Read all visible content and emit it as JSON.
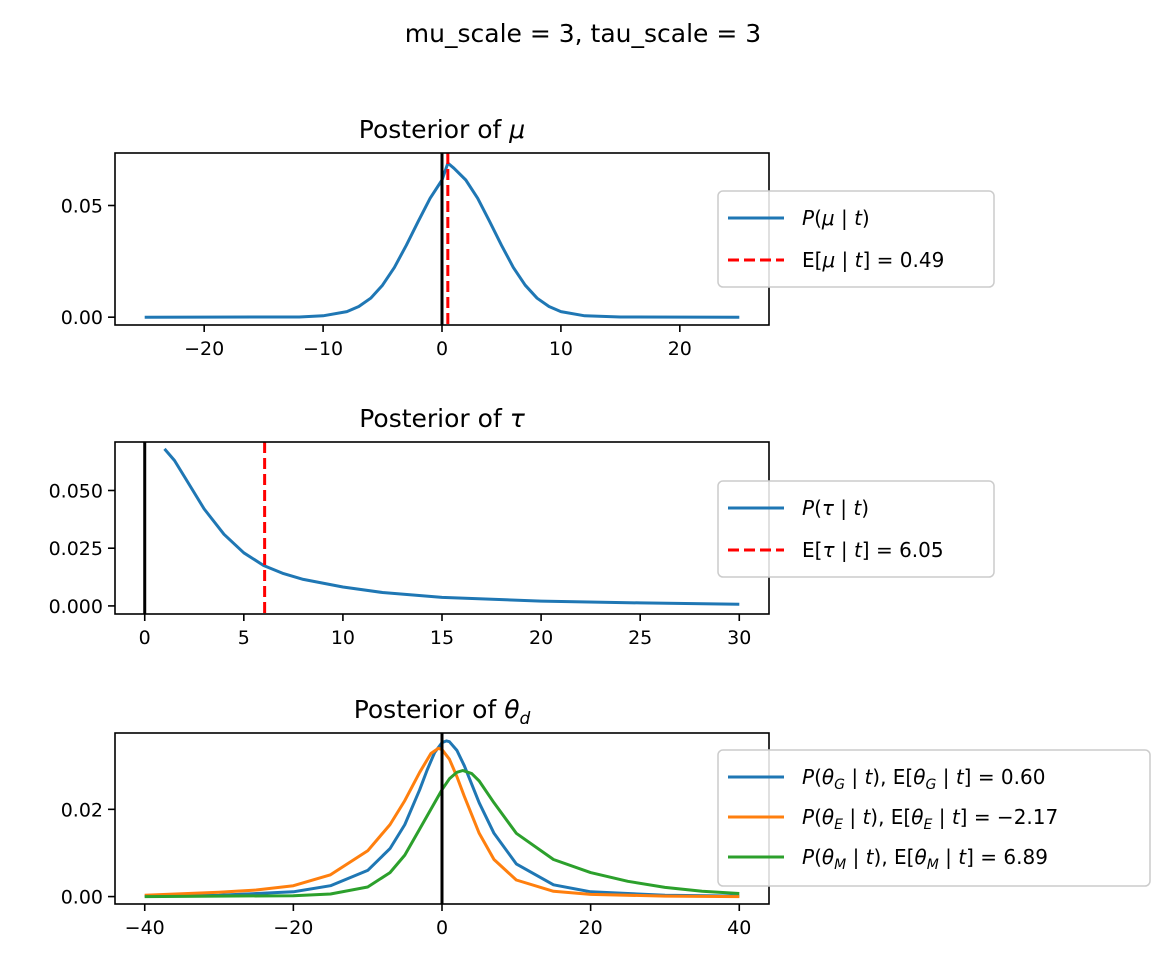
{
  "figure": {
    "suptitle": "mu_scale = 3, tau_scale = 3"
  },
  "chart_data": [
    {
      "type": "line",
      "title": "Posterior of μ",
      "xlim": [
        -27.5,
        27.5
      ],
      "ylim": [
        -0.0035,
        0.0735
      ],
      "xticks": [
        -20,
        -10,
        0,
        10,
        20
      ],
      "xtick_labels": [
        "−20",
        "−10",
        "0",
        "10",
        "20"
      ],
      "yticks": [
        0.0,
        0.05
      ],
      "ytick_labels": [
        "0.00",
        "0.05"
      ],
      "legend_position": "right",
      "series": [
        {
          "name": "P(μ | t)",
          "color": "#1f77b4",
          "x": [
            -25,
            -12,
            -10,
            -8,
            -7,
            -6,
            -5,
            -4,
            -3,
            -2,
            -1,
            0,
            0.5,
            1,
            2,
            3,
            4,
            5,
            6,
            7,
            8,
            9,
            10,
            12,
            15,
            25
          ],
          "y": [
            0.0,
            0.0001,
            0.0006,
            0.0025,
            0.0048,
            0.0085,
            0.0143,
            0.0223,
            0.0322,
            0.0429,
            0.0532,
            0.0614,
            0.069,
            0.0667,
            0.0614,
            0.0532,
            0.0429,
            0.0322,
            0.0223,
            0.0143,
            0.0085,
            0.0048,
            0.0025,
            0.0006,
            0.0001,
            0.0
          ]
        }
      ],
      "mean": {
        "name": "E[μ | t] = 0.49",
        "value": 0.49,
        "color": "#ff0000"
      },
      "reference_line": {
        "x": 0,
        "color": "#000000"
      }
    },
    {
      "type": "line",
      "title": "Posterior of τ",
      "xlim": [
        -1.5,
        31.5
      ],
      "ylim": [
        -0.0035,
        0.071
      ],
      "xticks": [
        0,
        5,
        10,
        15,
        20,
        25,
        30
      ],
      "xtick_labels": [
        "0",
        "5",
        "10",
        "15",
        "20",
        "25",
        "30"
      ],
      "yticks": [
        0.0,
        0.025,
        0.05
      ],
      "ytick_labels": [
        "0.000",
        "0.025",
        "0.050"
      ],
      "legend_position": "right",
      "series": [
        {
          "name": "P(τ | t)",
          "color": "#1f77b4",
          "x": [
            1,
            1.5,
            2,
            3,
            4,
            5,
            6,
            7,
            8,
            10,
            12,
            15,
            20,
            25,
            30
          ],
          "y": [
            0.068,
            0.063,
            0.056,
            0.042,
            0.031,
            0.023,
            0.0175,
            0.014,
            0.0115,
            0.0082,
            0.0058,
            0.0037,
            0.0021,
            0.0013,
            0.0007
          ]
        }
      ],
      "mean": {
        "name": "E[τ | t] = 6.05",
        "value": 6.05,
        "color": "#ff0000"
      },
      "reference_line": {
        "x": 0,
        "color": "#000000"
      }
    },
    {
      "type": "line",
      "title": "Posterior of θd",
      "xlim": [
        -44,
        44
      ],
      "ylim": [
        -0.0017,
        0.0375
      ],
      "xticks": [
        -40,
        -20,
        0,
        20,
        40
      ],
      "xtick_labels": [
        "−40",
        "−20",
        "0",
        "20",
        "40"
      ],
      "yticks": [
        0.0,
        0.02
      ],
      "ytick_labels": [
        "0.00",
        "0.02"
      ],
      "legend_position": "right",
      "series": [
        {
          "name": "P(θG | t),  E[θG | t] = 0.60",
          "label_parts": [
            "P(θ",
            "G",
            " | t),  E[θ",
            "G",
            " | t] = 0.60"
          ],
          "color": "#1f77b4",
          "x": [
            -40,
            -30,
            -20,
            -15,
            -10,
            -7,
            -5,
            -3,
            -2,
            -1,
            0,
            0.6,
            1,
            2,
            3,
            5,
            7,
            10,
            15,
            20,
            30,
            40
          ],
          "y": [
            0.0001,
            0.0003,
            0.0011,
            0.0025,
            0.006,
            0.011,
            0.0165,
            0.0245,
            0.029,
            0.033,
            0.0353,
            0.0357,
            0.0355,
            0.0335,
            0.03,
            0.0215,
            0.0145,
            0.0075,
            0.0027,
            0.0011,
            0.0003,
            0.0001
          ]
        },
        {
          "name": "P(θE | t),  E[θE | t] = −2.17",
          "label_parts": [
            "P(θ",
            "E",
            " | t),  E[θ",
            "E",
            " | t] = −2.17"
          ],
          "color": "#ff7f0e",
          "x": [
            -40,
            -30,
            -25,
            -20,
            -15,
            -10,
            -7,
            -5,
            -3,
            -1.5,
            -0.5,
            0,
            1,
            2,
            3,
            5,
            7,
            10,
            15,
            20,
            30,
            40
          ],
          "y": [
            0.0003,
            0.001,
            0.0015,
            0.0025,
            0.005,
            0.0105,
            0.0165,
            0.022,
            0.0285,
            0.0328,
            0.034,
            0.0337,
            0.0315,
            0.0275,
            0.023,
            0.0145,
            0.0085,
            0.0038,
            0.0012,
            0.0005,
            0.0001,
            0.0
          ]
        },
        {
          "name": "P(θM | t),  E[θM | t] = 6.89",
          "label_parts": [
            "P(θ",
            "M",
            " | t),  E[θ",
            "M",
            " | t] = 6.89"
          ],
          "color": "#2ca02c",
          "x": [
            -40,
            -20,
            -15,
            -10,
            -7,
            -5,
            -3,
            -1,
            0,
            1,
            2,
            2.8,
            4,
            5,
            7,
            10,
            15,
            20,
            25,
            30,
            35,
            40
          ],
          "y": [
            0.0,
            0.0002,
            0.0006,
            0.0022,
            0.0055,
            0.0095,
            0.0155,
            0.0215,
            0.0245,
            0.027,
            0.0285,
            0.0289,
            0.0282,
            0.0265,
            0.0215,
            0.0145,
            0.0085,
            0.0055,
            0.0035,
            0.0021,
            0.0012,
            0.0007
          ]
        }
      ],
      "reference_line": {
        "x": 0,
        "color": "#000000"
      }
    }
  ]
}
